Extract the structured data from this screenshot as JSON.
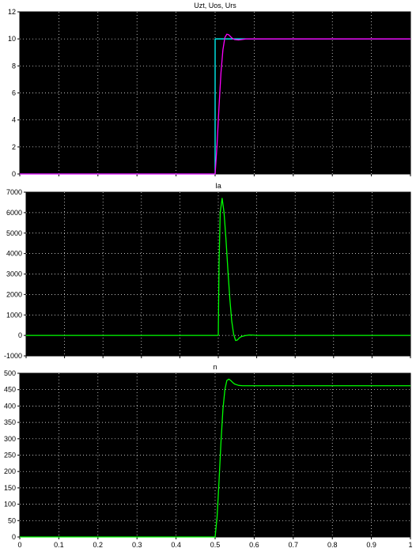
{
  "chart_data": [
    {
      "type": "line",
      "title": "Uzt, Uos, Urs",
      "xlim": [
        0,
        1
      ],
      "ylim": [
        0,
        12
      ],
      "yticks": [
        0,
        2,
        4,
        6,
        8,
        10,
        12
      ],
      "xticks": [
        0,
        0.1,
        0.2,
        0.3,
        0.4,
        0.5,
        0.6,
        0.7,
        0.8,
        0.9,
        1
      ],
      "xtick_labels": [],
      "grid": true,
      "background": "#000000",
      "series": [
        {
          "color": "#00ffff",
          "x": [
            0,
            0.5,
            0.5,
            1
          ],
          "y": [
            0,
            0,
            10,
            10
          ]
        },
        {
          "color": "#ff00ff",
          "x": [
            0,
            0.5,
            0.505,
            0.51,
            0.515,
            0.52,
            0.525,
            0.53,
            0.535,
            0.54,
            0.545,
            0.55,
            0.56,
            0.57,
            0.58,
            0.59,
            0.6,
            1
          ],
          "y": [
            0,
            0,
            2.2,
            5.0,
            7.5,
            9.2,
            10.1,
            10.35,
            10.3,
            10.15,
            10.02,
            9.95,
            9.92,
            9.96,
            10.0,
            10.0,
            10.0,
            10.0
          ]
        }
      ]
    },
    {
      "type": "line",
      "title": "Ia",
      "xlim": [
        0,
        1
      ],
      "ylim": [
        -1000,
        7000
      ],
      "yticks": [
        -1000,
        0,
        1000,
        2000,
        3000,
        4000,
        5000,
        6000,
        7000
      ],
      "xticks": [
        0,
        0.1,
        0.2,
        0.3,
        0.4,
        0.5,
        0.6,
        0.7,
        0.8,
        0.9,
        1
      ],
      "xtick_labels": [],
      "grid": true,
      "background": "#000000",
      "series": [
        {
          "color": "#00ff00",
          "x": [
            0,
            0.5,
            0.502,
            0.505,
            0.51,
            0.515,
            0.52,
            0.525,
            0.53,
            0.535,
            0.54,
            0.545,
            0.55,
            0.555,
            0.56,
            0.57,
            0.58,
            0.59,
            0.6,
            0.65,
            0.7,
            0.75,
            0.8,
            0.85,
            0.9,
            0.95,
            1
          ],
          "y": [
            0,
            0,
            3500,
            6000,
            6700,
            6000,
            4700,
            3200,
            1800,
            700,
            50,
            -250,
            -220,
            -120,
            -60,
            -10,
            20,
            15,
            0,
            0,
            0,
            0,
            0,
            0,
            0,
            0,
            0
          ]
        }
      ]
    },
    {
      "type": "line",
      "title": "n",
      "xlim": [
        0,
        1
      ],
      "ylim": [
        0,
        500
      ],
      "yticks": [
        0,
        50,
        100,
        150,
        200,
        250,
        300,
        350,
        400,
        450,
        500
      ],
      "xticks": [
        0,
        0.1,
        0.2,
        0.3,
        0.4,
        0.5,
        0.6,
        0.7,
        0.8,
        0.9,
        1
      ],
      "xtick_labels": [
        "0",
        "0.1",
        "0.2",
        "0.3",
        "0.4",
        "0.5",
        "0.6",
        "0.7",
        "0.8",
        "0.9",
        "1"
      ],
      "grid": true,
      "background": "#000000",
      "series": [
        {
          "color": "#00ff00",
          "x": [
            0,
            0.5,
            0.505,
            0.51,
            0.515,
            0.52,
            0.525,
            0.53,
            0.535,
            0.54,
            0.545,
            0.55,
            0.56,
            0.57,
            0.58,
            0.6,
            1
          ],
          "y": [
            0,
            0,
            60,
            170,
            290,
            390,
            450,
            478,
            482,
            478,
            472,
            467,
            463,
            462,
            462,
            462,
            462
          ]
        }
      ]
    }
  ]
}
